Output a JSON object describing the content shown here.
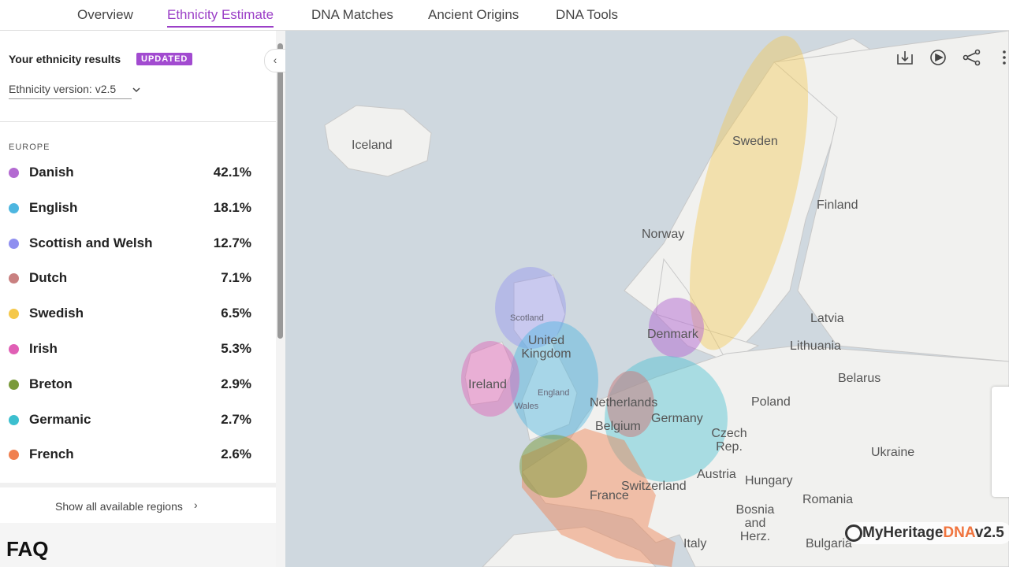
{
  "tabs": [
    "Overview",
    "Ethnicity Estimate",
    "DNA Matches",
    "Ancient Origins",
    "DNA Tools"
  ],
  "sidebar": {
    "title": "Your ethnicity results",
    "badge": "UPDATED",
    "version": "Ethnicity version: v2.5",
    "section": "EUROPE",
    "regions": [
      {
        "name": "Danish",
        "percent": "42.1%",
        "color": "#b36ad1"
      },
      {
        "name": "English",
        "percent": "18.1%",
        "color": "#4db6e0"
      },
      {
        "name": "Scottish and Welsh",
        "percent": "12.7%",
        "color": "#8f8ff0"
      },
      {
        "name": "Dutch",
        "percent": "7.1%",
        "color": "#c98080"
      },
      {
        "name": "Swedish",
        "percent": "6.5%",
        "color": "#f5c84a"
      },
      {
        "name": "Irish",
        "percent": "5.3%",
        "color": "#e05fb5"
      },
      {
        "name": "Breton",
        "percent": "2.9%",
        "color": "#7a9a3a"
      },
      {
        "name": "Germanic",
        "percent": "2.7%",
        "color": "#3cbfcf"
      },
      {
        "name": "French",
        "percent": "2.6%",
        "color": "#f08050"
      }
    ],
    "show_all": "Show all available regions",
    "faq": "FAQ"
  },
  "map": {
    "labels": [
      "Iceland",
      "Sweden",
      "Finland",
      "Norway",
      "Latvia",
      "Lithuania",
      "Belarus",
      "Poland",
      "Ukraine",
      "Denmark",
      "Scotland",
      "United Kingdom",
      "England",
      "Wales",
      "Ireland",
      "Netherlands",
      "Belgium",
      "Germany",
      "Czech Rep.",
      "Austria",
      "Hungary",
      "Romania",
      "Switzerland",
      "France",
      "Bosnia and Herz.",
      "Italy",
      "Bulgaria"
    ],
    "logo": "MyHeritage",
    "logo_dna": "DNA",
    "logo_version": "v2.5"
  }
}
